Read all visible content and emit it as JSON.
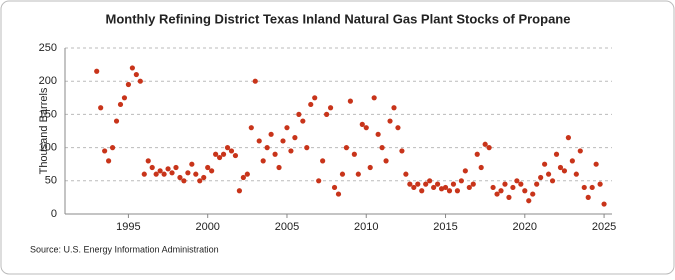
{
  "chart_data": {
    "type": "scatter",
    "title": "Monthly Refining District Texas Inland Natural Gas Plant Stocks of Propane",
    "y_label": "Thousand Barrels",
    "source": "Source: U.S. Energy Information Administration",
    "color": "#c8341a",
    "grid": true,
    "xlim": [
      1991,
      2025.5
    ],
    "xticks": [
      1995,
      2000,
      2005,
      2010,
      2015,
      2020,
      2025
    ],
    "ylim": [
      0,
      250
    ],
    "yticks": [
      0,
      50,
      100,
      150,
      200,
      250
    ],
    "x": [
      1993,
      1993.25,
      1993.5,
      1993.75,
      1994,
      1994.25,
      1994.5,
      1994.75,
      1995,
      1995.25,
      1995.5,
      1995.75,
      1996,
      1996.25,
      1996.5,
      1996.75,
      1997,
      1997.25,
      1997.5,
      1997.75,
      1998,
      1998.25,
      1998.5,
      1998.75,
      1999,
      1999.25,
      1999.5,
      1999.75,
      2000,
      2000.25,
      2000.5,
      2000.75,
      2001,
      2001.25,
      2001.5,
      2001.75,
      2002,
      2002.25,
      2002.5,
      2002.75,
      2003,
      2003.25,
      2003.5,
      2003.75,
      2004,
      2004.25,
      2004.5,
      2004.75,
      2005,
      2005.25,
      2005.5,
      2005.75,
      2006,
      2006.25,
      2006.5,
      2006.75,
      2007,
      2007.25,
      2007.5,
      2007.75,
      2008,
      2008.25,
      2008.5,
      2008.75,
      2009,
      2009.25,
      2009.5,
      2009.75,
      2010,
      2010.25,
      2010.5,
      2010.75,
      2011,
      2011.25,
      2011.5,
      2011.75,
      2012,
      2012.25,
      2012.5,
      2012.75,
      2013,
      2013.25,
      2013.5,
      2013.75,
      2014,
      2014.25,
      2014.5,
      2014.75,
      2015,
      2015.25,
      2015.5,
      2015.75,
      2016,
      2016.25,
      2016.5,
      2016.75,
      2017,
      2017.25,
      2017.5,
      2017.75,
      2018,
      2018.25,
      2018.5,
      2018.75,
      2019,
      2019.25,
      2019.5,
      2019.75,
      2020,
      2020.25,
      2020.5,
      2020.75,
      2021,
      2021.25,
      2021.5,
      2021.75,
      2022,
      2022.25,
      2022.5,
      2022.75,
      2023,
      2023.25,
      2023.5,
      2023.75,
      2024,
      2024.25,
      2024.5,
      2024.75,
      2025
    ],
    "values": [
      215,
      160,
      95,
      80,
      100,
      140,
      165,
      175,
      195,
      220,
      210,
      200,
      60,
      80,
      70,
      60,
      65,
      60,
      68,
      62,
      70,
      55,
      50,
      62,
      75,
      60,
      50,
      55,
      70,
      65,
      90,
      85,
      90,
      100,
      95,
      88,
      35,
      55,
      60,
      130,
      200,
      110,
      80,
      100,
      120,
      90,
      70,
      110,
      130,
      95,
      115,
      150,
      140,
      100,
      165,
      175,
      50,
      80,
      150,
      160,
      40,
      30,
      60,
      100,
      170,
      90,
      60,
      135,
      130,
      70,
      175,
      120,
      100,
      80,
      140,
      160,
      130,
      95,
      60,
      45,
      40,
      45,
      35,
      45,
      50,
      40,
      45,
      38,
      40,
      35,
      45,
      35,
      50,
      65,
      40,
      45,
      90,
      70,
      105,
      100,
      40,
      30,
      35,
      45,
      25,
      40,
      50,
      45,
      35,
      20,
      30,
      45,
      55,
      75,
      60,
      50,
      90,
      70,
      65,
      115,
      80,
      60,
      95,
      40,
      25,
      40,
      75,
      45,
      15
    ]
  }
}
